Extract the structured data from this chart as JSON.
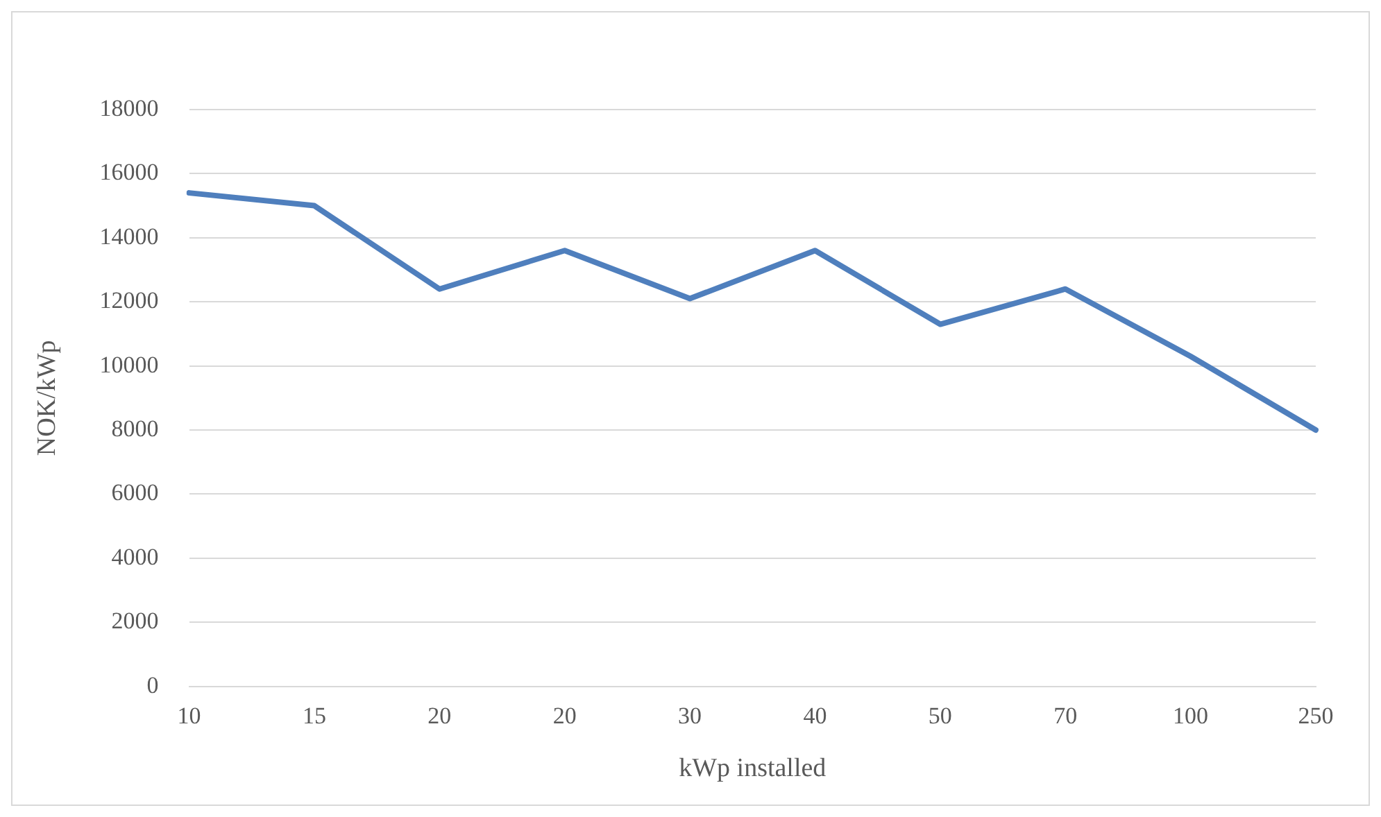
{
  "chart_data": {
    "type": "line",
    "xlabel": "kWp installed",
    "ylabel": "NOK/kWp",
    "categories": [
      "10",
      "15",
      "20",
      "20",
      "30",
      "40",
      "50",
      "70",
      "100",
      "250"
    ],
    "series": [
      {
        "color": "#4f7fbd",
        "values": [
          15400,
          15000,
          12400,
          13600,
          12100,
          13600,
          11300,
          12400,
          10300,
          8000
        ]
      }
    ],
    "ylim": [
      0,
      18000
    ],
    "yticks": [
      0,
      2000,
      4000,
      6000,
      8000,
      10000,
      12000,
      14000,
      16000,
      18000
    ],
    "grid": "y",
    "legend": false,
    "marker": "none",
    "line_style": "solid"
  }
}
